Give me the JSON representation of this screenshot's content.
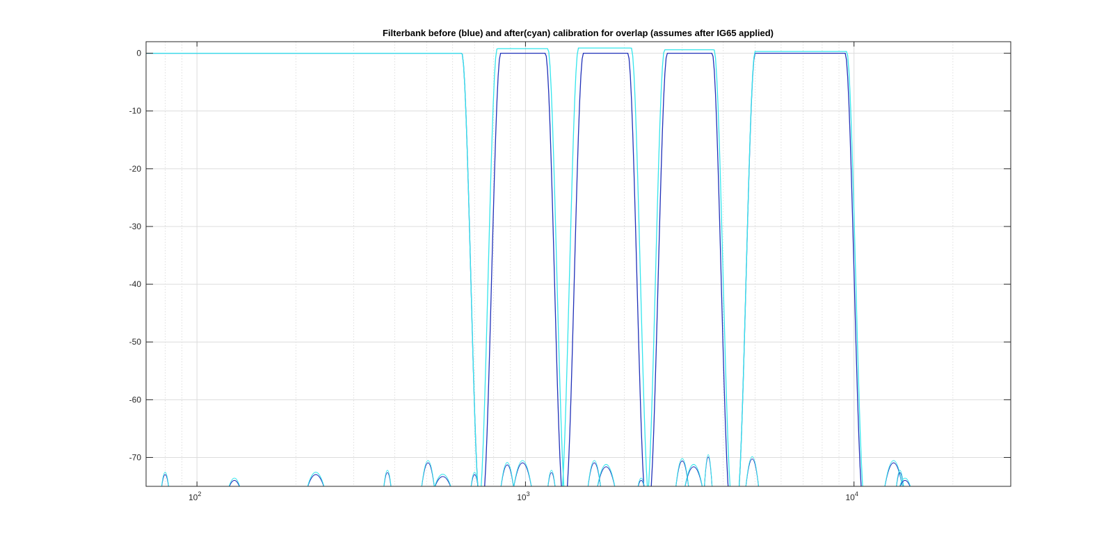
{
  "chart_data": {
    "type": "line",
    "title": "Filterbank before (blue) and after(cyan) calibration for overlap (assumes after IG65 applied)",
    "xlabel": "",
    "ylabel": "",
    "xscale": "log",
    "xlim": [
      70,
      30000
    ],
    "ylim": [
      -75,
      2
    ],
    "grid": "on",
    "minor_grid_x": "on",
    "legend": "none",
    "x_ticks": [
      {
        "value": 100,
        "base": "10",
        "exp": "2"
      },
      {
        "value": 1000,
        "base": "10",
        "exp": "3"
      },
      {
        "value": 10000,
        "base": "10",
        "exp": "4"
      }
    ],
    "y_ticks": [
      0,
      -10,
      -20,
      -30,
      -40,
      -50,
      -60,
      -70
    ],
    "y_tick_labels": [
      "0",
      "-10",
      "-20",
      "-30",
      "-40",
      "-50",
      "-60",
      "-70"
    ],
    "colors": {
      "before": "#1f2fb8",
      "after": "#33e5ec"
    },
    "series": [
      {
        "group": "before",
        "passband": [
          70,
          640
        ],
        "gain": 0
      },
      {
        "group": "before",
        "passband": [
          840,
          1150
        ],
        "gain": 0
      },
      {
        "group": "before",
        "passband": [
          1500,
          2050
        ],
        "gain": 0
      },
      {
        "group": "before",
        "passband": [
          2700,
          3700
        ],
        "gain": 0
      },
      {
        "group": "before",
        "passband": [
          5000,
          9400
        ],
        "gain": 0
      },
      {
        "group": "after",
        "passband": [
          70,
          640
        ],
        "gain": 0
      },
      {
        "group": "after",
        "passband": [
          820,
          1170
        ],
        "gain": 0.8
      },
      {
        "group": "after",
        "passband": [
          1450,
          2100
        ],
        "gain": 0.9
      },
      {
        "group": "after",
        "passband": [
          2650,
          3750
        ],
        "gain": 0.6
      },
      {
        "group": "after",
        "passband": [
          5000,
          9500
        ],
        "gain": 0.3
      }
    ],
    "sidelobe_points": [
      [
        80,
        -71.5
      ],
      [
        130,
        -73
      ],
      [
        230,
        -71.5
      ],
      [
        380,
        -71
      ],
      [
        505,
        -68.5
      ],
      [
        560,
        -72
      ],
      [
        700,
        -71.5
      ],
      [
        880,
        -69
      ],
      [
        980,
        -68.5
      ],
      [
        1200,
        -71
      ],
      [
        1620,
        -68.5
      ],
      [
        1760,
        -69.5
      ],
      [
        2250,
        -73
      ],
      [
        3000,
        -68
      ],
      [
        3250,
        -69.5
      ],
      [
        3600,
        -67
      ],
      [
        4900,
        -67.5
      ],
      [
        13200,
        -68.5
      ],
      [
        13800,
        -71
      ],
      [
        14300,
        -73
      ]
    ]
  }
}
